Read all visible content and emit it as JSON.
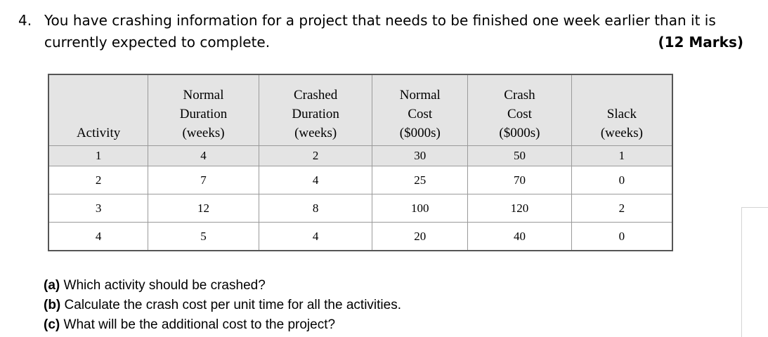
{
  "question": {
    "number": "4.",
    "line1": "You have crashing information for a project that needs to be finished one week earlier than it is",
    "line2": "currently expected to complete.",
    "marks": "(12 Marks)"
  },
  "table": {
    "headers": [
      [
        "Activity"
      ],
      [
        "Normal",
        "Duration",
        "(weeks)"
      ],
      [
        "Crashed",
        "Duration",
        "(weeks)"
      ],
      [
        "Normal",
        "Cost",
        "($000s)"
      ],
      [
        "Crash",
        "Cost",
        "($000s)"
      ],
      [
        "Slack",
        "(weeks)"
      ]
    ],
    "rows": [
      [
        "1",
        "4",
        "2",
        "30",
        "50",
        "1"
      ],
      [
        "2",
        "7",
        "4",
        "25",
        "70",
        "0"
      ],
      [
        "3",
        "12",
        "8",
        "100",
        "120",
        "2"
      ],
      [
        "4",
        "5",
        "4",
        "20",
        "40",
        "0"
      ]
    ]
  },
  "subquestions": [
    {
      "label": "(a)",
      "text": "Which activity should be crashed?"
    },
    {
      "label": "(b)",
      "text": "Calculate the crash cost per unit time for all the activities."
    },
    {
      "label": "(c)",
      "text": "What will be the additional cost to the project?"
    }
  ]
}
